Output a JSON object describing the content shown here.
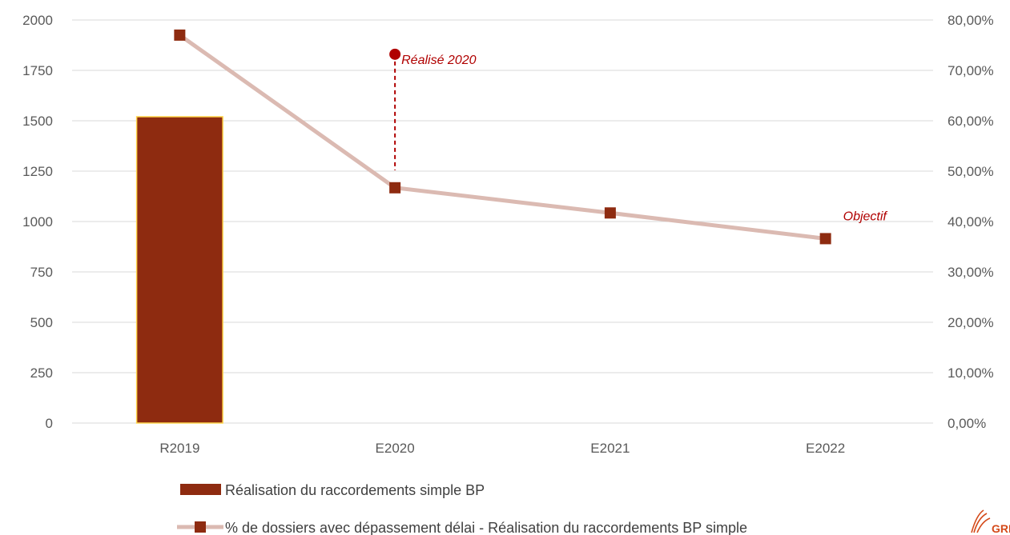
{
  "chart_data": {
    "type": "bar",
    "categories": [
      "R2019",
      "E2020",
      "E2021",
      "E2022"
    ],
    "series": [
      {
        "name": "Réalisation du raccordements simple BP",
        "type": "bar",
        "axis": "left",
        "values": [
          1520,
          null,
          null,
          null
        ]
      },
      {
        "name": "% de dossiers avec dépassement délai - Réalisation du raccordements BP simple",
        "type": "line",
        "axis": "right",
        "values": [
          0.77,
          0.467,
          0.417,
          0.366
        ]
      }
    ],
    "annotations": [
      {
        "text": "Réalisé 2020",
        "category": "E2020",
        "value": 0.732,
        "axis": "right"
      },
      {
        "text": "Objectif",
        "category": "E2022",
        "value": 0.366,
        "axis": "right"
      }
    ],
    "y_left": {
      "lim": [
        0,
        2000
      ],
      "ticks": [
        "0",
        "250",
        "500",
        "750",
        "1000",
        "1250",
        "1500",
        "1750",
        "2000"
      ]
    },
    "y_right": {
      "lim": [
        0,
        0.8
      ],
      "ticks": [
        "0,00%",
        "10,00%",
        "20,00%",
        "30,00%",
        "40,00%",
        "50,00%",
        "60,00%",
        "70,00%",
        "80,00%"
      ]
    },
    "grid": true,
    "legend_position": "bottom",
    "colors": {
      "bar": "#8e2b10",
      "bar_border": "#ffd54a",
      "line": "#dbbab2",
      "marker": "#8e2b10",
      "annotation": "#b00000",
      "grid": "#d9d9d9"
    }
  },
  "branding": {
    "logo_text": "GRDF"
  }
}
